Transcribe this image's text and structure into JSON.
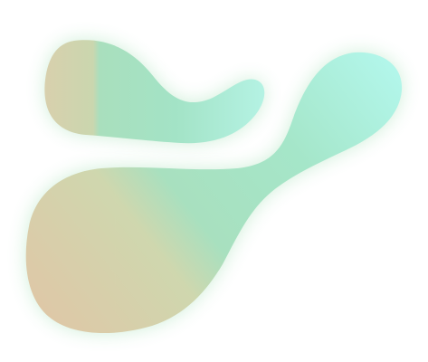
{
  "graphic": {
    "shapes": [
      "small-blob",
      "large-blob"
    ],
    "colors": {
      "warm_tan": "#dccaa6",
      "sand": "#cfd6ae",
      "mint": "#a4e2c3",
      "aqua": "#b0f5e8",
      "glow": "#96dcaa",
      "background": "#ffffff"
    }
  }
}
